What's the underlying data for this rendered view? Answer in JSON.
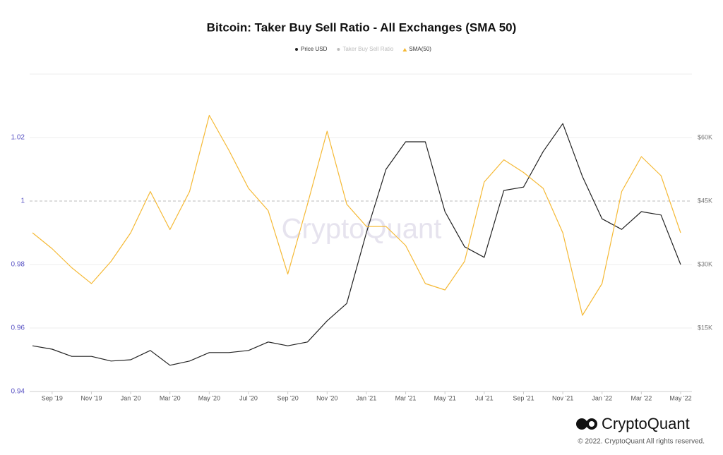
{
  "chart_data": {
    "type": "line",
    "title": "Bitcoin: Taker Buy Sell Ratio - All Exchanges (SMA 50)",
    "watermark": "CryptoQuant",
    "brand": "CryptoQuant",
    "copyright": "© 2022. CryptoQuant All rights reserved.",
    "x": [
      "2019-08",
      "2019-09",
      "2019-10",
      "2019-11",
      "2019-12",
      "2020-01",
      "2020-02",
      "2020-03",
      "2020-04",
      "2020-05",
      "2020-06",
      "2020-07",
      "2020-08",
      "2020-09",
      "2020-10",
      "2020-11",
      "2020-12",
      "2021-01",
      "2021-02",
      "2021-03",
      "2021-04",
      "2021-05",
      "2021-06",
      "2021-07",
      "2021-08",
      "2021-09",
      "2021-10",
      "2021-11",
      "2021-12",
      "2022-01",
      "2022-02",
      "2022-03",
      "2022-04",
      "2022-05"
    ],
    "xlim": [
      "2019-08",
      "2022-05"
    ],
    "xticks": [
      {
        "value": "2019-09",
        "label": "Sep '19"
      },
      {
        "value": "2019-11",
        "label": "Nov '19"
      },
      {
        "value": "2020-01",
        "label": "Jan '20"
      },
      {
        "value": "2020-03",
        "label": "Mar '20"
      },
      {
        "value": "2020-05",
        "label": "May '20"
      },
      {
        "value": "2020-07",
        "label": "Jul '20"
      },
      {
        "value": "2020-09",
        "label": "Sep '20"
      },
      {
        "value": "2020-11",
        "label": "Nov '20"
      },
      {
        "value": "2021-01",
        "label": "Jan '21"
      },
      {
        "value": "2021-03",
        "label": "Mar '21"
      },
      {
        "value": "2021-05",
        "label": "May '21"
      },
      {
        "value": "2021-07",
        "label": "Jul '21"
      },
      {
        "value": "2021-09",
        "label": "Sep '21"
      },
      {
        "value": "2021-11",
        "label": "Nov '21"
      },
      {
        "value": "2022-01",
        "label": "Jan '22"
      },
      {
        "value": "2022-03",
        "label": "Mar '22"
      },
      {
        "value": "2022-05",
        "label": "May '22"
      }
    ],
    "ylim": [
      0.94,
      1.04
    ],
    "yticks": [
      0.94,
      0.96,
      0.98,
      1,
      1.02
    ],
    "y2lim": [
      0,
      75000
    ],
    "y2ticks": [
      {
        "value": 15000,
        "label": "$15K"
      },
      {
        "value": 30000,
        "label": "$30K"
      },
      {
        "value": 45000,
        "label": "$45K"
      },
      {
        "value": 60000,
        "label": "$60K"
      }
    ],
    "reference_line": 1,
    "grid": true,
    "legend": "top",
    "series": [
      {
        "name": "Price USD",
        "color": "#222222",
        "axis": "y2",
        "values": [
          10800,
          10000,
          8300,
          8300,
          7200,
          7500,
          9700,
          6200,
          7200,
          9200,
          9200,
          9700,
          11700,
          10800,
          11700,
          16700,
          20800,
          37500,
          52500,
          59000,
          59000,
          42500,
          34200,
          31700,
          47500,
          48300,
          56700,
          63300,
          50800,
          40800,
          38300,
          42500,
          41700,
          30000
        ]
      },
      {
        "name": "Taker Buy Sell Ratio",
        "color": "#bbbbbb",
        "visible": false,
        "values": [
          null,
          null,
          null,
          null,
          null,
          null,
          null,
          null,
          null,
          null,
          null,
          null,
          null,
          null,
          null,
          null,
          null,
          null,
          null,
          null,
          null,
          null,
          null,
          null,
          null,
          null,
          null,
          null,
          null,
          null,
          null,
          null,
          null,
          null
        ]
      },
      {
        "name": "SMA(50)",
        "color": "#f5b935",
        "values": [
          0.99,
          0.985,
          0.979,
          0.974,
          0.981,
          0.99,
          1.003,
          0.991,
          1.003,
          1.027,
          1.016,
          1.004,
          0.997,
          0.977,
          0.999,
          1.022,
          0.999,
          0.992,
          0.992,
          0.986,
          0.974,
          0.972,
          0.981,
          1.006,
          1.013,
          1.009,
          1.004,
          0.99,
          0.964,
          0.974,
          1.003,
          1.014,
          1.008,
          0.99
        ]
      }
    ]
  }
}
